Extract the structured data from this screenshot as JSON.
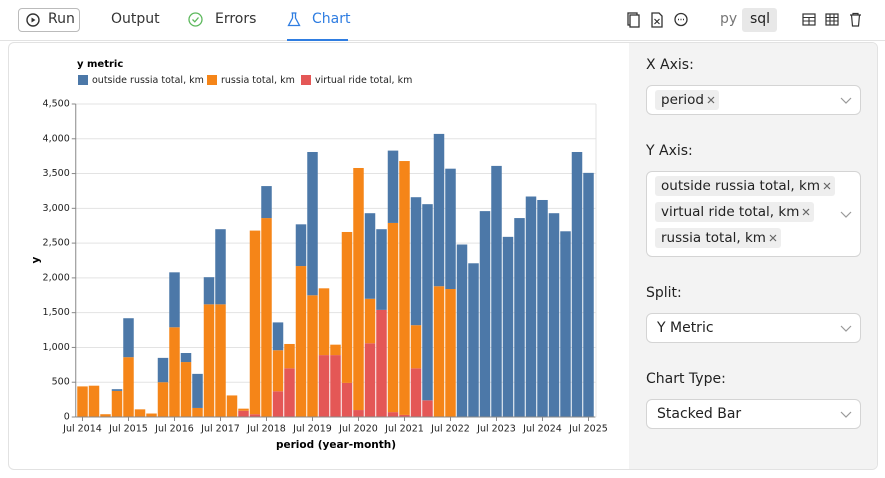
{
  "toolbar": {
    "run": "Run",
    "tabs": [
      "Output",
      "Errors",
      "Chart"
    ],
    "languages": [
      "py",
      "sql"
    ]
  },
  "settings": {
    "x_axis": {
      "label": "X Axis:",
      "chips": [
        "period"
      ]
    },
    "y_axis": {
      "label": "Y Axis:",
      "chips": [
        "outside russia total, km",
        "virtual ride total, km",
        "russia total, km"
      ]
    },
    "split": {
      "label": "Split:",
      "value": "Y Metric"
    },
    "chart_type": {
      "label": "Chart Type:",
      "value": "Stacked Bar"
    }
  },
  "chart_data": {
    "type": "stacked_bar",
    "legend_title": "y metric",
    "x_label": "period (year-month)",
    "y_label": "y",
    "x": [
      "2014-07",
      "2014-10",
      "2015-01",
      "2015-04",
      "2015-07",
      "2015-10",
      "2016-01",
      "2016-04",
      "2016-07",
      "2016-10",
      "2017-01",
      "2017-04",
      "2017-07",
      "2017-10",
      "2018-01",
      "2018-04",
      "2018-07",
      "2018-10",
      "2019-01",
      "2019-04",
      "2019-07",
      "2019-10",
      "2020-01",
      "2020-04",
      "2020-07",
      "2020-10",
      "2021-01",
      "2021-04",
      "2021-07",
      "2021-10",
      "2022-01",
      "2022-04",
      "2022-07",
      "2022-10",
      "2023-01",
      "2023-04",
      "2023-07",
      "2023-10",
      "2024-01",
      "2024-04",
      "2024-07",
      "2024-10",
      "2025-01",
      "2025-04",
      "2025-07"
    ],
    "series": [
      {
        "name": "outside russia total, km",
        "color": "#4c78a8",
        "values": [
          0,
          0,
          0,
          25,
          560,
          0,
          0,
          350,
          790,
          130,
          490,
          390,
          1080,
          0,
          0,
          0,
          460,
          400,
          0,
          600,
          2060,
          0,
          0,
          0,
          0,
          1230,
          1160,
          1040,
          0,
          1840,
          2820,
          2190,
          1730,
          2480,
          2210,
          2960,
          3610,
          2590,
          2860,
          3170,
          3120,
          2930,
          2670,
          3810,
          3510
        ]
      },
      {
        "name": "russia total, km",
        "color": "#f58518",
        "values": [
          440,
          450,
          40,
          375,
          860,
          110,
          50,
          500,
          1290,
          790,
          130,
          1620,
          1620,
          310,
          30,
          2640,
          2860,
          590,
          350,
          2170,
          1750,
          960,
          150,
          2170,
          3480,
          640,
          0,
          2720,
          3650,
          620,
          0,
          1880,
          1840,
          0,
          0,
          0,
          0,
          0,
          0,
          0,
          0,
          0,
          0,
          0,
          0
        ]
      },
      {
        "name": "virtual ride total, km",
        "color": "#e45756",
        "values": [
          0,
          0,
          0,
          0,
          0,
          0,
          0,
          0,
          0,
          0,
          0,
          0,
          0,
          0,
          90,
          40,
          0,
          370,
          700,
          0,
          0,
          890,
          890,
          490,
          100,
          1060,
          1540,
          70,
          30,
          700,
          240,
          0,
          0,
          0,
          0,
          0,
          0,
          0,
          0,
          0,
          0,
          0,
          0,
          0,
          0
        ]
      }
    ],
    "ylim": [
      0,
      4500
    ],
    "yticks": [
      0,
      500,
      {
        "value": 1000,
        "label": "1,000"
      },
      {
        "value": 1500,
        "label": "1,500"
      },
      {
        "value": 2000,
        "label": "2,000"
      },
      {
        "value": 2500,
        "label": "2,500"
      },
      {
        "value": 3000,
        "label": "3,000"
      },
      {
        "value": 3500,
        "label": "3,500"
      },
      {
        "value": 4000,
        "label": "4,000"
      },
      {
        "value": 4500,
        "label": "4,500"
      }
    ],
    "xticks": [
      {
        "value": "2014-07",
        "label": "Jul 2014"
      },
      {
        "value": "2015-07",
        "label": "Jul 2015"
      },
      {
        "value": "2016-07",
        "label": "Jul 2016"
      },
      {
        "value": "2017-07",
        "label": "Jul 2017"
      },
      {
        "value": "2018-07",
        "label": "Jul 2018"
      },
      {
        "value": "2019-07",
        "label": "Jul 2019"
      },
      {
        "value": "2020-07",
        "label": "Jul 2020"
      },
      {
        "value": "2021-07",
        "label": "Jul 2021"
      },
      {
        "value": "2022-07",
        "label": "Jul 2022"
      },
      {
        "value": "2023-07",
        "label": "Jul 2023"
      },
      {
        "value": "2024-07",
        "label": "Jul 2024"
      },
      {
        "value": "2025-07",
        "label": "Jul 2025"
      }
    ],
    "grid": true
  }
}
